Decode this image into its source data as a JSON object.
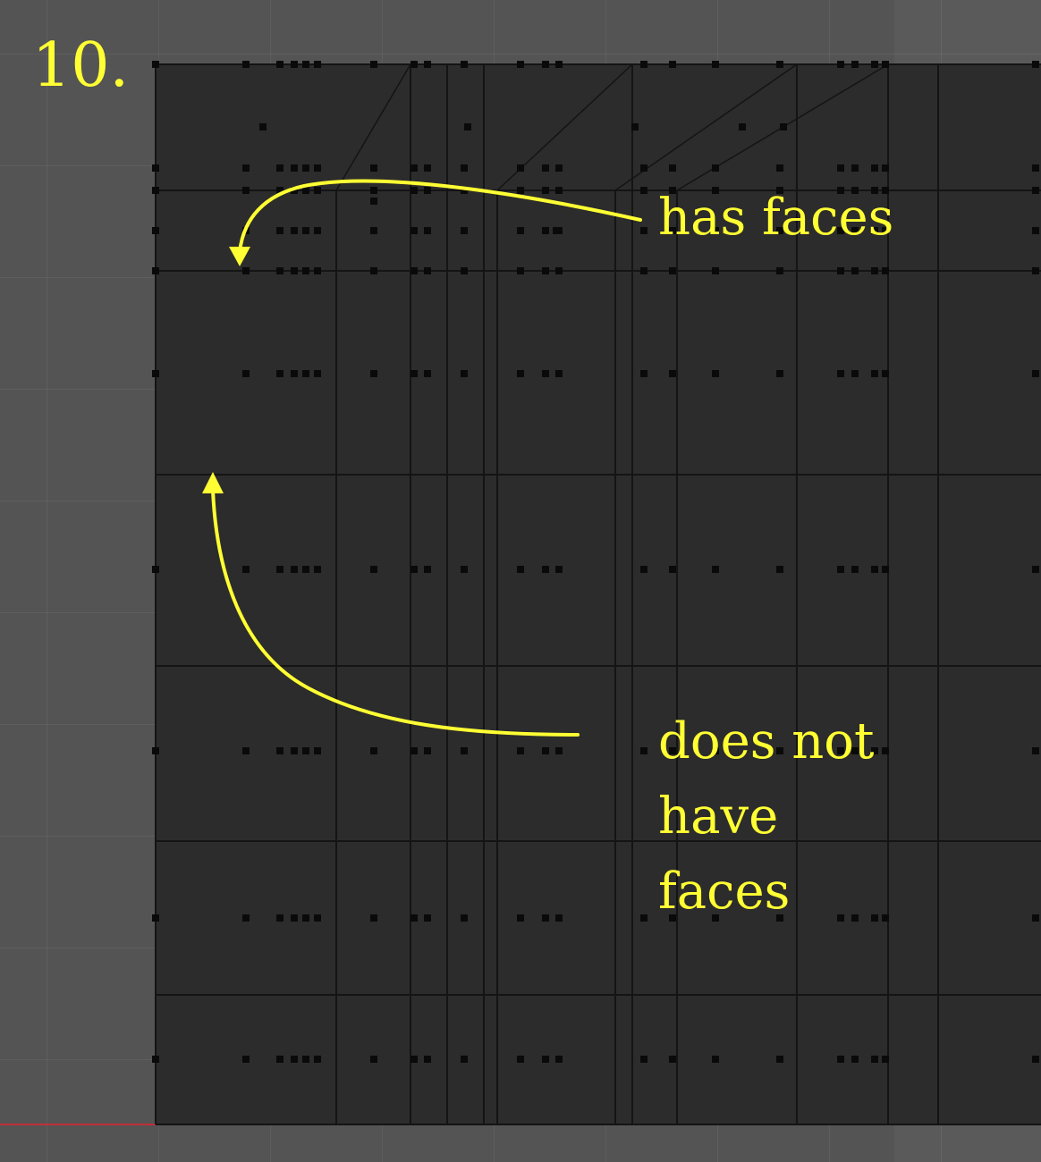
{
  "step": {
    "number": "10."
  },
  "annotations": {
    "has_faces": "has faces",
    "no_faces_lines": [
      "does not",
      "have",
      "faces"
    ]
  },
  "colors": {
    "annotation": "#ffff33",
    "viewport_background": "#545454",
    "mesh_face": "#2c2c2c",
    "mesh_edge": "#141414",
    "vertex": "#0a0a0a",
    "axis_x": "#c0303a"
  }
}
